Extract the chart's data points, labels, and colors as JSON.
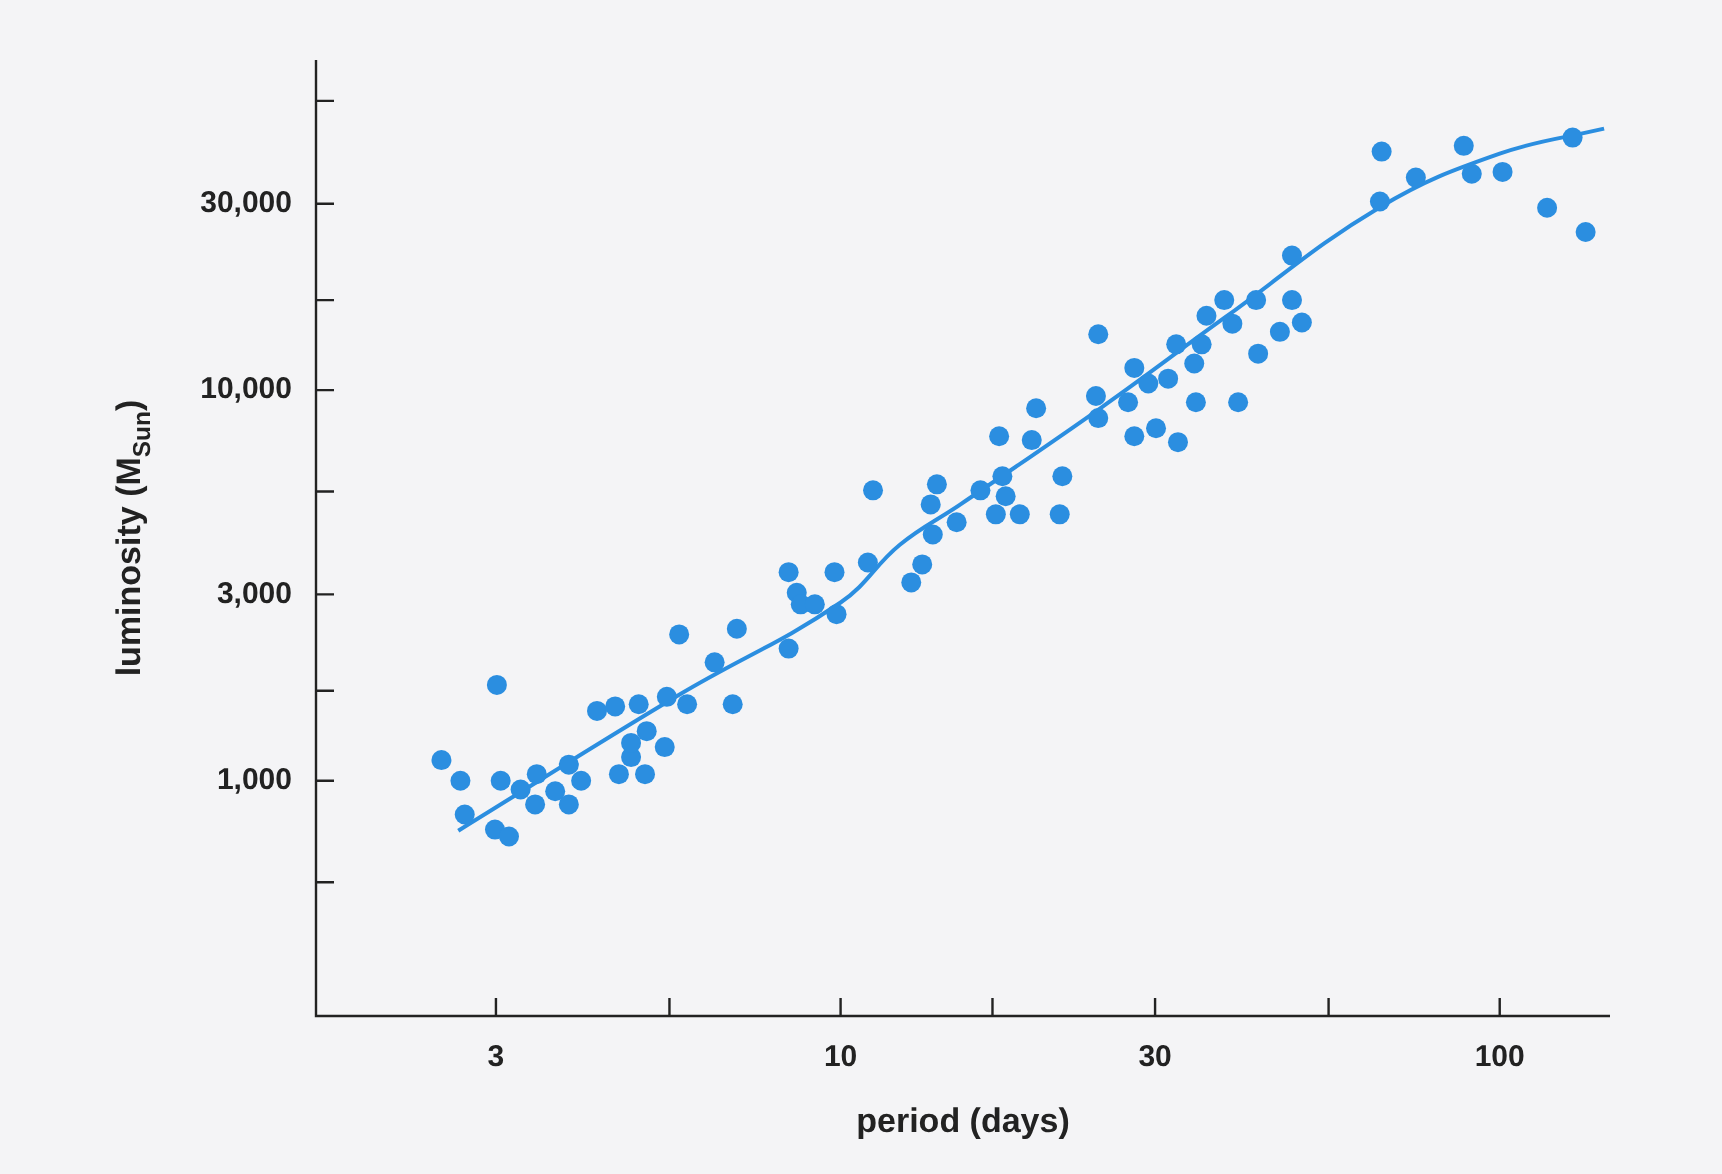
{
  "chart_data": {
    "type": "scatter",
    "xlabel": "period (days)",
    "ylabel": "luminosity (M$_{Sun}$)",
    "log": "xy",
    "xlim": [
      1.6,
      147
    ],
    "ylim": [
      250,
      70000
    ],
    "xticks": [
      3,
      {
        "value": 5.5,
        "label": null
      },
      10,
      {
        "value": 17,
        "label": null
      },
      30,
      {
        "value": 55,
        "label": null
      },
      100
    ],
    "yticks": [
      {
        "value": 550,
        "label": null
      },
      {
        "value": 1000,
        "label": "1,000"
      },
      {
        "value": 1700,
        "label": null
      },
      {
        "value": 3000,
        "label": "3,000"
      },
      {
        "value": 5500,
        "label": null
      },
      {
        "value": 10000,
        "label": "10,000"
      },
      {
        "value": 17000,
        "label": null
      },
      {
        "value": 30000,
        "label": "30,000"
      },
      {
        "value": 55000,
        "label": null
      }
    ],
    "grid": false,
    "legend": false,
    "marker": "circle",
    "series": [
      {
        "color": "#2b8ee0",
        "x": [
          2.48,
          2.65,
          2.69,
          3.01,
          3.05,
          2.99,
          3.14,
          3.27,
          3.44,
          3.46,
          3.69,
          3.87,
          3.87,
          4.04,
          4.27,
          4.55,
          4.61,
          4.81,
          4.81,
          4.94,
          5.05,
          5.08,
          5.41,
          5.45,
          5.69,
          5.85,
          6.44,
          6.86,
          6.96,
          8.34,
          8.58,
          8.7,
          9.14,
          8.34,
          9.79,
          9.86,
          11.0,
          11.2,
          12.8,
          13.3,
          13.8,
          13.7,
          14.0,
          15.0,
          16.3,
          17.2,
          17.4,
          17.6,
          17.8,
          18.7,
          19.5,
          19.8,
          21.5,
          21.7,
          24.6,
          24.4,
          24.6,
          27.3,
          27.9,
          27.9,
          29.3,
          30.1,
          31.4,
          32.5,
          32.3,
          34.4,
          34.6,
          35.3,
          35.9,
          38.2,
          39.3,
          40.1,
          42.7,
          43.0,
          46.4,
          48.4,
          48.4,
          50.1,
          66.2,
          65.8,
          74.6,
          88.2,
          90.7,
          101,
          118,
          129,
          135
        ],
        "values": [
          1130,
          1000,
          820,
          1760,
          1000,
          750,
          720,
          950,
          870,
          1040,
          940,
          870,
          1100,
          1000,
          1510,
          1550,
          1040,
          1150,
          1250,
          1570,
          1040,
          1340,
          1220,
          1640,
          2370,
          1570,
          2010,
          1570,
          2450,
          3420,
          3030,
          2830,
          2830,
          2180,
          3420,
          2670,
          3620,
          5540,
          3220,
          3580,
          4270,
          5100,
          5740,
          4590,
          5540,
          4810,
          7620,
          6020,
          5350,
          4810,
          7450,
          8990,
          4810,
          6020,
          13900,
          9660,
          8480,
          9310,
          11400,
          7620,
          10400,
          7990,
          10700,
          7360,
          13100,
          11700,
          9310,
          13100,
          15500,
          17000,
          14800,
          9310,
          17000,
          12400,
          14100,
          17000,
          22100,
          14900,
          40800,
          30400,
          35000,
          42200,
          35800,
          36200,
          29300,
          44300,
          25400
        ]
      },
      {
        "type": "line",
        "color": "#2b8ee0",
        "marker": "none",
        "x": [
          2.63,
          5.69,
          10,
          12.3,
          15.2,
          24.8,
          38.2,
          65.8,
          100,
          144
        ],
        "values": [
          745,
          1660,
          2860,
          4020,
          5100,
          9000,
          15300,
          29400,
          40300,
          46700
        ]
      }
    ]
  }
}
